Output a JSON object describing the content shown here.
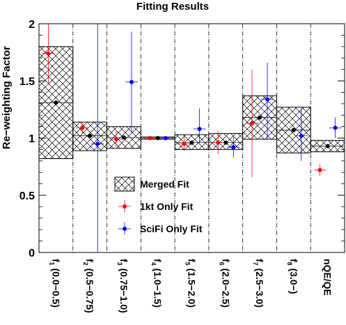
{
  "chart_data": {
    "type": "scatter",
    "title": "Fitting Results",
    "ylabel": "Re−weighting Factor",
    "xlabel": "",
    "ylim": [
      0,
      2
    ],
    "yticks": [
      "0",
      "0.5",
      "1",
      "1.5",
      "2"
    ],
    "categories": [
      {
        "sym": "f",
        "sub": "1",
        "range": " (0.0−0.5)"
      },
      {
        "sym": "f",
        "sub": "2",
        "range": " (0.5−0.75)"
      },
      {
        "sym": "f",
        "sub": "3",
        "range": " (0.75−1.0)"
      },
      {
        "sym": "f",
        "sub": "4",
        "range": " (1.0−1.5)"
      },
      {
        "sym": "f",
        "sub": "5",
        "range": " (1.5−2.0)"
      },
      {
        "sym": "f",
        "sub": "6",
        "range": " (2.0−2.5)"
      },
      {
        "sym": "f",
        "sub": "7",
        "range": " (2.5−3.0)"
      },
      {
        "sym": "f",
        "sub": "8",
        "range": " (3.0−)"
      },
      {
        "sym": "nQE/QE",
        "sub": "",
        "range": ""
      }
    ],
    "series": [
      {
        "name": "Merged Fit",
        "color": "#000000",
        "values": [
          1.31,
          1.02,
          1.005,
          1.0,
          0.96,
          0.96,
          1.18,
          1.07,
          0.93
        ],
        "band_low": [
          0.82,
          0.89,
          0.91,
          0.99,
          0.9,
          0.9,
          0.99,
          0.87,
          0.88
        ],
        "band_high": [
          1.8,
          1.14,
          1.1,
          1.01,
          1.03,
          1.04,
          1.37,
          1.27,
          0.98
        ]
      },
      {
        "name": "1kt Only Fit",
        "color": "#ff0000",
        "values": [
          1.74,
          1.09,
          0.99,
          1.0,
          0.95,
          0.96,
          1.13,
          null,
          0.72
        ],
        "err_low": [
          0.26,
          0.05,
          0.07,
          0.01,
          0.06,
          0.1,
          0.47,
          null,
          0.05
        ],
        "err_high": [
          0.26,
          0.05,
          0.07,
          0.01,
          0.06,
          0.1,
          0.47,
          null,
          0.05
        ]
      },
      {
        "name": "SciFi Only Fit",
        "color": "#0000ff",
        "values": [
          null,
          0.95,
          1.49,
          1.0,
          1.08,
          0.92,
          1.34,
          1.02,
          1.09
        ],
        "err_low": [
          null,
          0.95,
          0.44,
          0.01,
          0.12,
          0.09,
          0.35,
          0.22,
          0.09
        ],
        "err_high": [
          null,
          1.05,
          0.44,
          0.01,
          0.18,
          0.09,
          0.32,
          0.24,
          0.09
        ]
      }
    ],
    "legend": "center-left inside plot"
  }
}
